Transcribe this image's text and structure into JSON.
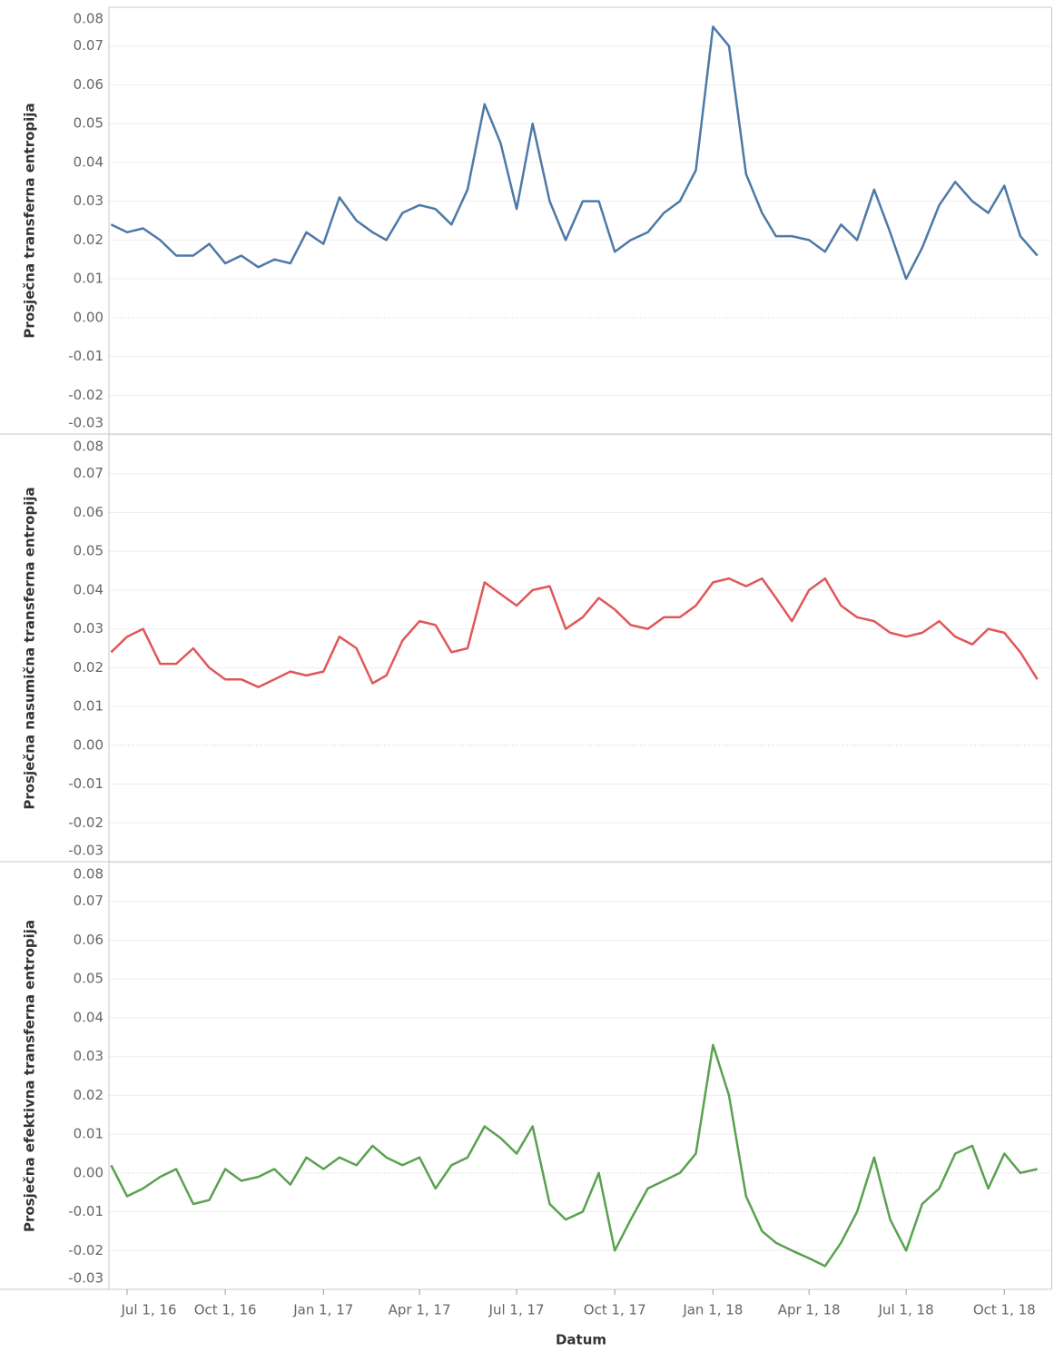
{
  "chart_data": {
    "type": "line",
    "x_label": "Datum",
    "x": [
      "2016-06-16",
      "2016-07-01",
      "2016-07-16",
      "2016-08-01",
      "2016-08-16",
      "2016-09-01",
      "2016-09-16",
      "2016-10-01",
      "2016-10-16",
      "2016-11-01",
      "2016-11-16",
      "2016-12-01",
      "2016-12-16",
      "2017-01-01",
      "2017-01-16",
      "2017-02-01",
      "2017-02-16",
      "2017-03-01",
      "2017-03-16",
      "2017-04-01",
      "2017-04-16",
      "2017-05-01",
      "2017-05-16",
      "2017-06-01",
      "2017-06-16",
      "2017-07-01",
      "2017-07-16",
      "2017-08-01",
      "2017-08-16",
      "2017-09-01",
      "2017-09-16",
      "2017-10-01",
      "2017-10-16",
      "2017-11-01",
      "2017-11-16",
      "2017-12-01",
      "2017-12-16",
      "2018-01-01",
      "2018-01-16",
      "2018-02-01",
      "2018-02-16",
      "2018-03-01",
      "2018-03-16",
      "2018-04-01",
      "2018-04-16",
      "2018-05-01",
      "2018-05-16",
      "2018-06-01",
      "2018-06-16",
      "2018-07-01",
      "2018-07-16",
      "2018-08-01",
      "2018-08-16",
      "2018-09-01",
      "2018-09-16",
      "2018-10-01",
      "2018-10-16",
      "2018-11-01"
    ],
    "xlim": [
      "2016-06-14",
      "2018-11-14"
    ],
    "xticks": [
      {
        "value": "2016-07-01",
        "label": "Jul 1, 16"
      },
      {
        "value": "2016-10-01",
        "label": "Oct 1, 16"
      },
      {
        "value": "2017-01-01",
        "label": "Jan 1, 17"
      },
      {
        "value": "2017-04-01",
        "label": "Apr 1, 17"
      },
      {
        "value": "2017-07-01",
        "label": "Jul 1, 17"
      },
      {
        "value": "2017-10-01",
        "label": "Oct 1, 17"
      },
      {
        "value": "2018-01-01",
        "label": "Jan 1, 18"
      },
      {
        "value": "2018-04-01",
        "label": "Apr 1, 18"
      },
      {
        "value": "2018-07-01",
        "label": "Jul 1, 18"
      },
      {
        "value": "2018-10-01",
        "label": "Oct 1, 18"
      }
    ],
    "ylim": [
      -0.03,
      0.08
    ],
    "yticks": [
      -0.03,
      -0.02,
      -0.01,
      {
        "value": 0,
        "label": "0.00"
      },
      0.01,
      0.02,
      0.03,
      0.04,
      0.05,
      0.06,
      0.07,
      0.08
    ],
    "grid": true,
    "series": [
      {
        "name": "Prosječna transferna entropija",
        "color": "#4e79a7",
        "values": [
          0.024,
          0.022,
          0.023,
          0.02,
          0.016,
          0.016,
          0.019,
          0.014,
          0.016,
          0.013,
          0.015,
          0.014,
          0.022,
          0.019,
          0.031,
          0.025,
          0.022,
          0.02,
          0.027,
          0.029,
          0.028,
          0.024,
          0.033,
          0.055,
          0.045,
          0.028,
          0.05,
          0.03,
          0.02,
          0.03,
          0.03,
          0.017,
          0.02,
          0.022,
          0.027,
          0.03,
          0.038,
          0.075,
          0.07,
          0.037,
          0.027,
          0.021,
          0.021,
          0.02,
          0.017,
          0.024,
          0.02,
          0.033,
          0.022,
          0.01,
          0.018,
          0.029,
          0.035,
          0.03,
          0.027,
          0.034,
          0.021,
          0.016
        ]
      },
      {
        "name": "Prosječna nasumična transferna entropija",
        "color": "#e15759",
        "values": [
          0.024,
          0.028,
          0.03,
          0.021,
          0.021,
          0.025,
          0.02,
          0.017,
          0.017,
          0.015,
          0.017,
          0.019,
          0.018,
          0.019,
          0.028,
          0.025,
          0.016,
          0.018,
          0.027,
          0.032,
          0.031,
          0.024,
          0.025,
          0.042,
          0.039,
          0.036,
          0.04,
          0.041,
          0.03,
          0.033,
          0.038,
          0.035,
          0.031,
          0.03,
          0.033,
          0.033,
          0.036,
          0.042,
          0.043,
          0.041,
          0.043,
          0.038,
          0.032,
          0.04,
          0.043,
          0.036,
          0.033,
          0.032,
          0.029,
          0.028,
          0.029,
          0.032,
          0.028,
          0.026,
          0.03,
          0.029,
          0.024,
          0.017
        ]
      },
      {
        "name": "Prosječna efektivna transferna entropija",
        "color": "#59a14f",
        "values": [
          0.002,
          -0.006,
          -0.004,
          -0.001,
          0.001,
          -0.008,
          -0.007,
          0.001,
          -0.002,
          -0.001,
          0.001,
          -0.003,
          0.004,
          0.001,
          0.004,
          0.002,
          0.007,
          0.004,
          0.002,
          0.004,
          -0.004,
          0.002,
          0.004,
          0.012,
          0.009,
          0.005,
          0.012,
          -0.008,
          -0.012,
          -0.01,
          0.0,
          -0.02,
          -0.012,
          -0.004,
          -0.002,
          0.0,
          0.005,
          0.033,
          0.02,
          -0.006,
          -0.015,
          -0.018,
          -0.02,
          -0.022,
          -0.024,
          -0.018,
          -0.01,
          0.004,
          -0.012,
          -0.02,
          -0.008,
          -0.004,
          0.005,
          0.007,
          -0.004,
          0.005,
          0.0,
          0.001
        ]
      }
    ]
  }
}
